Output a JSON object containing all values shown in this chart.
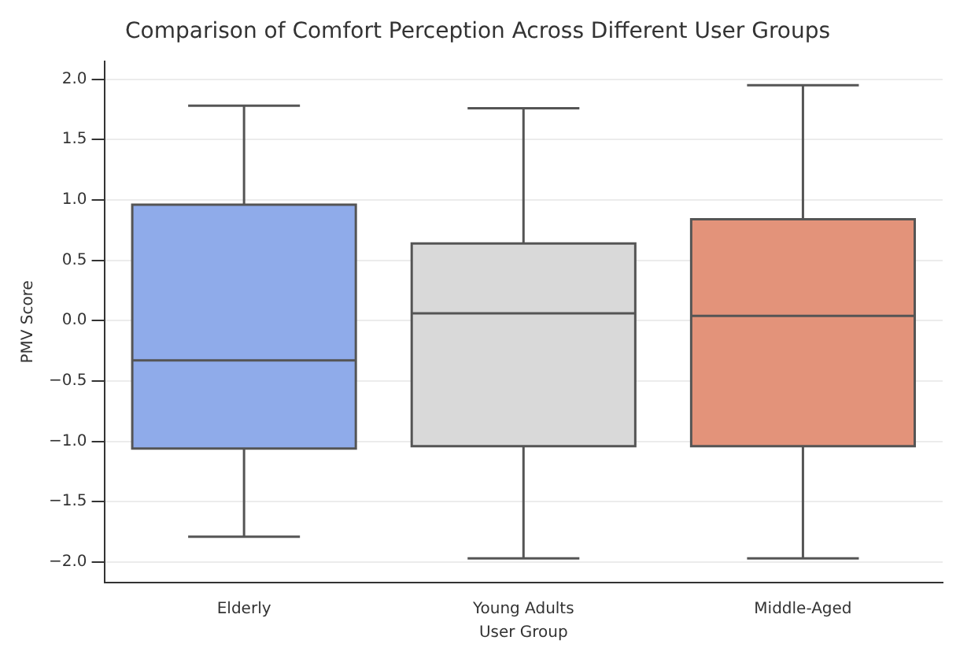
{
  "chart_data": {
    "type": "box",
    "title": "Comparison of Comfort Perception Across Different User Groups",
    "xlabel": "User Group",
    "ylabel": "PMV Score",
    "categories": [
      "Elderly",
      "Young Adults",
      "Middle-Aged"
    ],
    "colors": [
      "#8fabea",
      "#d9d9d9",
      "#e3937a"
    ],
    "boxes": [
      {
        "low": -1.79,
        "q1": -1.06,
        "median": -0.33,
        "q3": 0.96,
        "high": 1.78
      },
      {
        "low": -1.97,
        "q1": -1.04,
        "median": 0.06,
        "q3": 0.64,
        "high": 1.76
      },
      {
        "low": -1.97,
        "q1": -1.04,
        "median": 0.04,
        "q3": 0.84,
        "high": 1.95
      }
    ],
    "ylim": [
      -2.17,
      2.15
    ],
    "yticks": [
      {
        "value": -2,
        "label": "−2.0"
      },
      {
        "value": -1.5,
        "label": "−1.5"
      },
      {
        "value": -1,
        "label": "−1.0"
      },
      {
        "value": -0.5,
        "label": "−0.5"
      },
      {
        "value": 0,
        "label": "0.0"
      },
      {
        "value": 0.5,
        "label": "0.5"
      },
      {
        "value": 1,
        "label": "1.0"
      },
      {
        "value": 1.5,
        "label": "1.5"
      },
      {
        "value": 2,
        "label": "2.0"
      }
    ],
    "grid": "y"
  }
}
